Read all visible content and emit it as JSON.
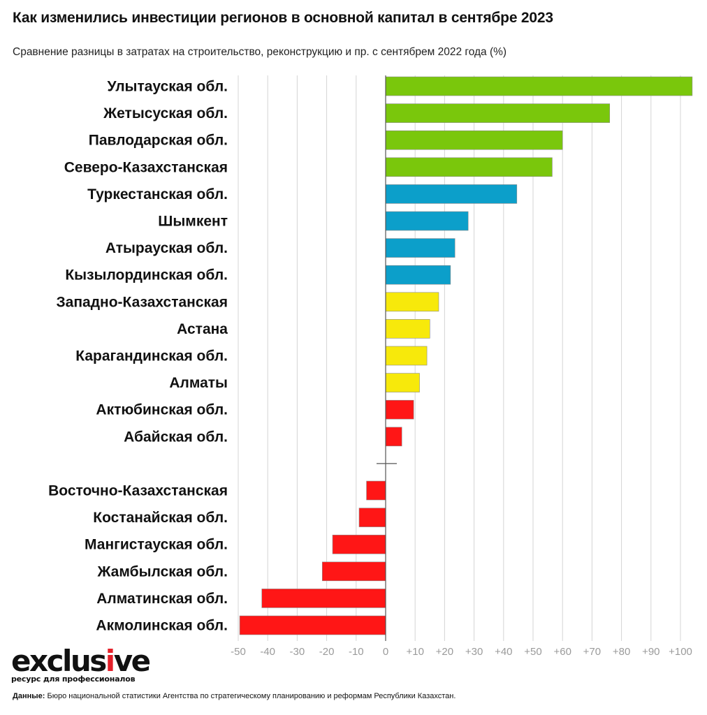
{
  "title": "Как изменились инвестиции регионов в основной капитал в сентябре 2023",
  "subtitle": "Сравнение разницы в затратах на строительство, реконструкцию и пр. с сентябрем 2022 года (%)",
  "logo": {
    "main": "exclusive",
    "tagline": "ресурс для профессионалов"
  },
  "source": {
    "label": "Данные:",
    "text": " Бюро национальной статистики Агентства по стратегическому планированию и реформам Республики Казахстан."
  },
  "colors": {
    "green": "#7ac70c",
    "blue": "#0c9fca",
    "yellow": "#f7e90b",
    "red": "#ff1616",
    "grid": "#d4d4d4",
    "axis": "#555555",
    "tick_text": "#9a9a9a"
  },
  "chart_data": {
    "type": "bar",
    "orientation": "horizontal",
    "title": "Как изменились инвестиции регионов в основной капитал в сентябре 2023",
    "xlim": [
      -50,
      103
    ],
    "x_ticks": [
      -50,
      -40,
      -30,
      -20,
      -10,
      0,
      10,
      20,
      30,
      40,
      50,
      60,
      70,
      80,
      90,
      100
    ],
    "x_tick_labels": [
      "-50",
      "-40",
      "-30",
      "-20",
      "-10",
      "0",
      "+10",
      "+20",
      "+30",
      "+40",
      "+50",
      "+60",
      "+70",
      "+80",
      "+90",
      "+100"
    ],
    "grid": true,
    "bars": [
      {
        "label": "Улытауская обл.",
        "value": 104,
        "color": "green"
      },
      {
        "label": "Жетысуская обл.",
        "value": 76,
        "color": "green"
      },
      {
        "label": "Павлодарская обл.",
        "value": 60,
        "color": "green"
      },
      {
        "label": "Северо-Казахстанская",
        "value": 56.5,
        "color": "green"
      },
      {
        "label": "Туркестанская обл.",
        "value": 44.5,
        "color": "blue"
      },
      {
        "label": "Шымкент",
        "value": 28,
        "color": "blue"
      },
      {
        "label": "Атырауская обл.",
        "value": 23.5,
        "color": "blue"
      },
      {
        "label": "Кызылординская обл.",
        "value": 22,
        "color": "blue"
      },
      {
        "label": "Западно-Казахстанская",
        "value": 18,
        "color": "yellow"
      },
      {
        "label": "Астана",
        "value": 15,
        "color": "yellow"
      },
      {
        "label": "Карагандинская обл.",
        "value": 14,
        "color": "yellow"
      },
      {
        "label": "Алматы",
        "value": 11.5,
        "color": "yellow"
      },
      {
        "label": "Актюбинская обл.",
        "value": 9.5,
        "color": "red"
      },
      {
        "label": "Абайская обл.",
        "value": 5.5,
        "color": "red"
      },
      {
        "label": "",
        "value": 0,
        "color": "none"
      },
      {
        "label": "Восточно-Казахстанская",
        "value": -6.5,
        "color": "red"
      },
      {
        "label": "Костанайская обл.",
        "value": -9,
        "color": "red"
      },
      {
        "label": "Мангистауская обл.",
        "value": -18,
        "color": "red"
      },
      {
        "label": "Жамбылская обл.",
        "value": -21.5,
        "color": "red"
      },
      {
        "label": "Алматинская обл.",
        "value": -42,
        "color": "red"
      },
      {
        "label": "Акмолинская обл.",
        "value": -49.5,
        "color": "red"
      }
    ]
  }
}
